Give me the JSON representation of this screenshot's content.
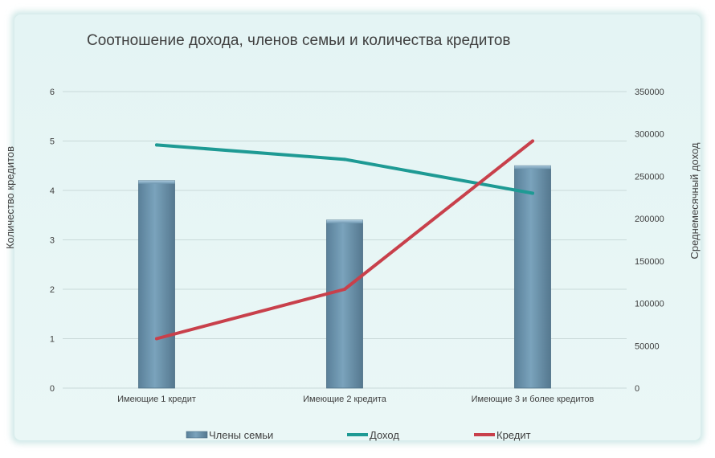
{
  "chart_data": {
    "type": "bar",
    "title": "Соотношение  дохода, членов семьи и количества кредитов",
    "ylabel_left": "Количество кредитов",
    "ylabel_right": "Среднемесячный доход",
    "categories": [
      "Имеющие 1 кредит",
      "Имеющие 2 кредита",
      "Имеющие 3 и более кредитов"
    ],
    "y_left_ticks": [
      "0",
      "1",
      "2",
      "3",
      "4",
      "5",
      "6"
    ],
    "y_right_ticks": [
      "0",
      "50000",
      "100000",
      "150000",
      "200000",
      "250000",
      "300000",
      "350000"
    ],
    "ylim_left": [
      0,
      6
    ],
    "ylim_right": [
      0,
      350000
    ],
    "grid": true,
    "legend_position": "bottom",
    "series": [
      {
        "name": "Члены семьи",
        "kind": "bar",
        "axis": "left",
        "color": "#6f97b0",
        "values": [
          4.2,
          3.4,
          4.5
        ]
      },
      {
        "name": "Доход",
        "kind": "line",
        "axis": "right",
        "color": "#1e9a94",
        "values": [
          287000,
          270000,
          230000
        ]
      },
      {
        "name": "Кредит",
        "kind": "line",
        "axis": "left",
        "color": "#c8404b",
        "values": [
          1.0,
          2.0,
          5.0
        ]
      }
    ]
  }
}
